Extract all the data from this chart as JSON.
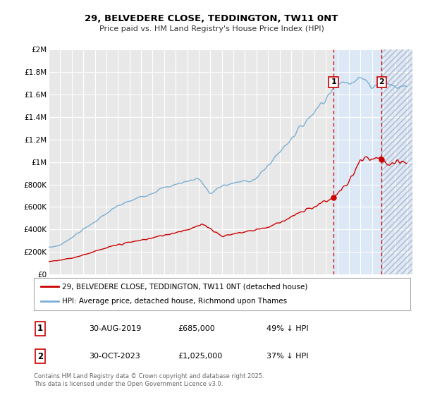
{
  "title": "29, BELVEDERE CLOSE, TEDDINGTON, TW11 0NT",
  "subtitle": "Price paid vs. HM Land Registry's House Price Index (HPI)",
  "background_color": "#ffffff",
  "plot_bg_color": "#e8e8e8",
  "grid_color": "#ffffff",
  "ylim": [
    0,
    2000000
  ],
  "xlim_start": 1995.0,
  "xlim_end": 2026.5,
  "yticks": [
    0,
    200000,
    400000,
    600000,
    800000,
    1000000,
    1200000,
    1400000,
    1600000,
    1800000,
    2000000
  ],
  "ytick_labels": [
    "£0",
    "£200K",
    "£400K",
    "£600K",
    "£800K",
    "£1M",
    "£1.2M",
    "£1.4M",
    "£1.6M",
    "£1.8M",
    "£2M"
  ],
  "xticks": [
    1995,
    1996,
    1997,
    1998,
    1999,
    2000,
    2001,
    2002,
    2003,
    2004,
    2005,
    2006,
    2007,
    2008,
    2009,
    2010,
    2011,
    2012,
    2013,
    2014,
    2015,
    2016,
    2017,
    2018,
    2019,
    2020,
    2021,
    2022,
    2023,
    2024,
    2025,
    2026
  ],
  "sale1_x": 2019.667,
  "sale1_y": 685000,
  "sale1_label": "1",
  "sale1_date": "30-AUG-2019",
  "sale1_price": "£685,000",
  "sale1_hpi": "49% ↓ HPI",
  "sale2_x": 2023.833,
  "sale2_y": 1025000,
  "sale2_label": "2",
  "sale2_date": "30-OCT-2023",
  "sale2_price": "£1,025,000",
  "sale2_hpi": "37% ↓ HPI",
  "hpi_color": "#7bafd4",
  "price_color": "#cc0000",
  "vline_color": "#cc0000",
  "legend_label_price": "29, BELVEDERE CLOSE, TEDDINGTON, TW11 0NT (detached house)",
  "legend_label_hpi": "HPI: Average price, detached house, Richmond upon Thames",
  "footer": "Contains HM Land Registry data © Crown copyright and database right 2025.\nThis data is licensed under the Open Government Licence v3.0.",
  "shaded_solid_start": 2019.667,
  "shaded_solid_end": 2023.833,
  "shaded_hatch_start": 2023.833,
  "shaded_hatch_end": 2026.5,
  "shaded_color": "#dce8f5"
}
